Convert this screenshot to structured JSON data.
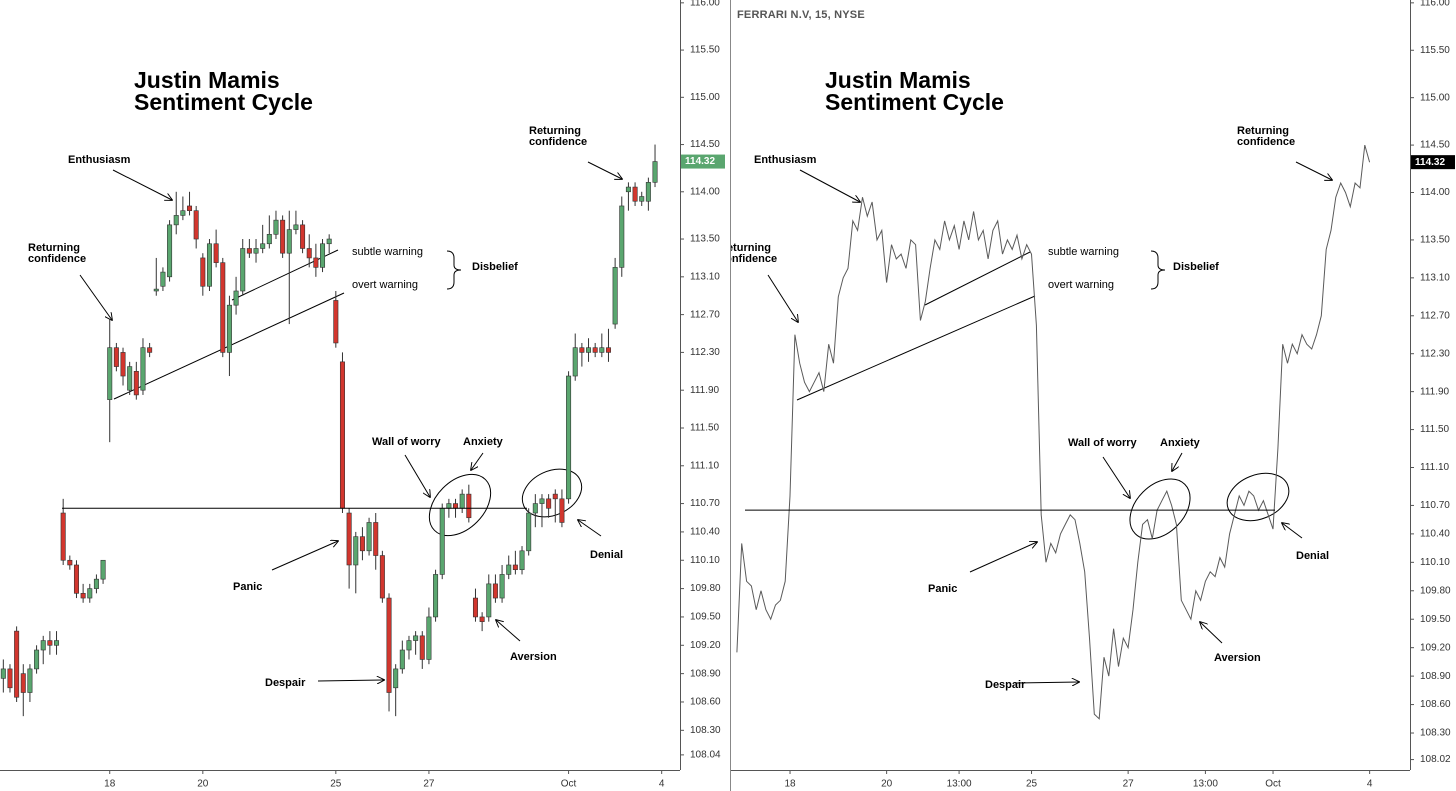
{
  "chart_data": [
    {
      "type": "candlestick",
      "title": "Justin Mamis Sentiment Cycle",
      "categories": [
        null,
        null,
        null,
        null,
        null,
        null,
        null,
        null,
        null,
        null,
        null,
        null,
        null,
        null,
        null,
        null,
        "18",
        null,
        null,
        null,
        null,
        null,
        null,
        null,
        null,
        null,
        null,
        null,
        null,
        null,
        "20",
        null,
        null,
        null,
        null,
        null,
        null,
        null,
        null,
        null,
        null,
        null,
        null,
        null,
        null,
        null,
        null,
        null,
        null,
        null,
        "25",
        null,
        null,
        null,
        null,
        null,
        null,
        null,
        null,
        null,
        null,
        null,
        null,
        null,
        "27",
        null,
        null,
        null,
        null,
        null,
        null,
        null,
        null,
        null,
        null,
        null,
        null,
        null,
        null,
        null,
        null,
        null,
        null,
        null,
        null,
        "Oct",
        null,
        null,
        null,
        null,
        null,
        null,
        null,
        null,
        null,
        null,
        null,
        null,
        null,
        "4"
      ],
      "open": [
        108.85,
        108.95,
        109.35,
        108.9,
        108.7,
        108.95,
        109.15,
        109.25,
        109.2,
        110.6,
        110.1,
        110.05,
        109.75,
        109.7,
        109.8,
        109.9,
        111.8,
        112.35,
        112.3,
        111.9,
        112.1,
        111.9,
        112.35,
        112.95,
        113.0,
        113.1,
        113.65,
        113.75,
        113.85,
        113.8,
        113.3,
        113.0,
        113.45,
        113.25,
        112.3,
        112.8,
        112.95,
        113.4,
        113.35,
        113.4,
        113.45,
        113.55,
        113.7,
        113.35,
        113.6,
        113.65,
        113.4,
        113.3,
        113.2,
        113.45,
        112.85,
        112.2,
        110.6,
        110.05,
        110.35,
        110.2,
        110.5,
        110.15,
        109.7,
        108.75,
        108.95,
        109.15,
        109.25,
        109.3,
        109.05,
        109.5,
        109.95,
        110.65,
        110.7,
        110.65,
        110.8,
        109.7,
        109.5,
        109.5,
        109.85,
        109.7,
        109.95,
        110.05,
        110.0,
        110.2,
        110.6,
        110.7,
        110.75,
        110.8,
        110.75,
        110.75,
        112.05,
        112.35,
        112.3,
        112.35,
        112.3,
        112.35,
        112.6,
        113.2,
        114.0,
        114.05,
        113.9,
        113.9,
        114.1,
        null
      ],
      "high": [
        109.05,
        109.0,
        109.4,
        109.0,
        109.0,
        109.2,
        109.3,
        109.35,
        109.35,
        110.75,
        110.15,
        110.1,
        109.85,
        109.85,
        109.95,
        110.1,
        112.65,
        112.4,
        112.35,
        112.2,
        112.2,
        112.45,
        112.4,
        113.3,
        113.2,
        113.7,
        114.0,
        113.95,
        114.0,
        113.85,
        113.35,
        113.5,
        113.6,
        113.3,
        112.9,
        113.1,
        113.5,
        113.5,
        113.5,
        113.65,
        113.75,
        113.8,
        113.75,
        113.8,
        113.8,
        113.7,
        113.55,
        113.45,
        113.5,
        113.55,
        112.95,
        112.3,
        110.65,
        110.4,
        110.45,
        110.55,
        110.6,
        110.2,
        109.75,
        109.0,
        109.25,
        109.3,
        109.35,
        109.35,
        109.6,
        110.0,
        110.7,
        110.75,
        110.75,
        110.85,
        110.9,
        109.8,
        109.55,
        109.95,
        109.95,
        110.05,
        110.15,
        110.2,
        110.25,
        110.65,
        110.8,
        110.8,
        110.8,
        110.85,
        110.85,
        112.1,
        112.5,
        112.4,
        112.45,
        112.4,
        112.5,
        112.55,
        113.3,
        113.95,
        114.1,
        114.1,
        114.0,
        114.15,
        114.5,
        null
      ],
      "low": [
        108.7,
        108.7,
        108.6,
        108.45,
        108.6,
        108.9,
        109.0,
        109.1,
        109.1,
        110.05,
        110.0,
        109.7,
        109.65,
        109.65,
        109.75,
        109.85,
        111.35,
        112.1,
        111.95,
        111.85,
        111.8,
        111.85,
        112.25,
        112.9,
        112.95,
        113.05,
        113.55,
        113.7,
        113.75,
        113.4,
        112.9,
        112.95,
        113.2,
        112.25,
        112.05,
        112.7,
        112.9,
        113.3,
        113.25,
        113.35,
        113.4,
        113.5,
        113.3,
        112.6,
        113.55,
        113.35,
        113.2,
        113.1,
        113.15,
        113.35,
        112.35,
        110.6,
        109.8,
        109.75,
        110.1,
        110.15,
        110.0,
        109.65,
        108.5,
        108.45,
        108.9,
        109.05,
        109.1,
        108.95,
        109.0,
        109.45,
        109.9,
        110.55,
        110.55,
        110.6,
        110.5,
        109.45,
        109.35,
        109.45,
        109.65,
        109.65,
        109.9,
        109.95,
        109.95,
        110.15,
        110.45,
        110.45,
        110.55,
        110.5,
        110.45,
        110.7,
        112.0,
        112.15,
        112.2,
        112.25,
        112.25,
        112.2,
        112.55,
        113.1,
        113.8,
        113.85,
        113.85,
        113.8,
        114.05,
        null
      ],
      "close": [
        108.95,
        108.75,
        108.65,
        108.7,
        108.95,
        109.15,
        109.25,
        109.2,
        109.25,
        110.1,
        110.05,
        109.75,
        109.7,
        109.8,
        109.9,
        110.1,
        112.35,
        112.15,
        112.05,
        112.15,
        111.85,
        112.35,
        112.3,
        112.97,
        113.15,
        113.65,
        113.75,
        113.8,
        113.8,
        113.5,
        113.0,
        113.45,
        113.25,
        112.3,
        112.8,
        112.95,
        113.4,
        113.35,
        113.4,
        113.45,
        113.55,
        113.7,
        113.35,
        113.6,
        113.65,
        113.4,
        113.3,
        113.2,
        113.45,
        113.5,
        112.4,
        110.65,
        110.05,
        110.35,
        110.2,
        110.5,
        110.15,
        109.7,
        108.7,
        108.95,
        109.15,
        109.25,
        109.3,
        109.05,
        109.5,
        109.95,
        110.65,
        110.7,
        110.65,
        110.8,
        110.55,
        109.5,
        109.45,
        109.85,
        109.7,
        109.95,
        110.05,
        110.0,
        110.2,
        110.6,
        110.7,
        110.75,
        110.65,
        110.75,
        110.5,
        112.05,
        112.35,
        112.3,
        112.35,
        112.3,
        112.35,
        112.3,
        113.2,
        113.85,
        114.05,
        113.9,
        113.95,
        114.1,
        114.32,
        null
      ],
      "up_color": "#5aa66f",
      "down_color": "#d2362e",
      "ylim": [
        107.88,
        116.03
      ],
      "yticks": [
        {
          "value": 116,
          "label": "116.00"
        },
        {
          "value": 115.5,
          "label": "115.50"
        },
        {
          "value": 115,
          "label": "115.00"
        },
        {
          "value": 114.5,
          "label": "114.50"
        },
        {
          "value": 114,
          "label": "114.00"
        },
        {
          "value": 113.5,
          "label": "113.50"
        },
        {
          "value": 113.1,
          "label": "113.10"
        },
        {
          "value": 112.7,
          "label": "112.70"
        },
        {
          "value": 112.3,
          "label": "112.30"
        },
        {
          "value": 111.9,
          "label": "111.90"
        },
        {
          "value": 111.5,
          "label": "111.50"
        },
        {
          "value": 111.1,
          "label": "111.10"
        },
        {
          "value": 110.7,
          "label": "110.70"
        },
        {
          "value": 110.4,
          "label": "110.40"
        },
        {
          "value": 110.1,
          "label": "110.10"
        },
        {
          "value": 109.8,
          "label": "109.80"
        },
        {
          "value": 109.5,
          "label": "109.50"
        },
        {
          "value": 109.2,
          "label": "109.20"
        },
        {
          "value": 108.9,
          "label": "108.90"
        },
        {
          "value": 108.6,
          "label": "108.60"
        },
        {
          "value": 108.3,
          "label": "108.30"
        },
        108.04
      ],
      "support_level": 110.65,
      "last_price": 114.32,
      "last_price_color": "#5aa66f",
      "annotations": [
        "Enthusiasm",
        "Returning confidence",
        "Returning confidence",
        "subtle warning",
        "overt warning",
        "Disbelief",
        "Wall of worry",
        "Anxiety",
        "Panic",
        "Despair",
        "Aversion",
        "Denial"
      ]
    },
    {
      "type": "line",
      "title": "Justin Mamis Sentiment Cycle",
      "subtitle": "FERRARI N.V, 15, NYSE",
      "categories": [
        null,
        null,
        null,
        null,
        null,
        null,
        null,
        null,
        null,
        null,
        null,
        "18",
        null,
        null,
        null,
        null,
        null,
        null,
        null,
        null,
        null,
        null,
        null,
        null,
        null,
        null,
        null,
        null,
        null,
        null,
        null,
        "20",
        null,
        null,
        null,
        null,
        null,
        null,
        null,
        null,
        null,
        null,
        null,
        null,
        null,
        null,
        "13:00",
        null,
        null,
        null,
        null,
        null,
        null,
        null,
        null,
        null,
        null,
        null,
        null,
        null,
        null,
        "25",
        null,
        null,
        null,
        null,
        null,
        null,
        null,
        null,
        null,
        null,
        null,
        null,
        null,
        null,
        null,
        null,
        null,
        null,
        null,
        "27",
        null,
        null,
        null,
        null,
        null,
        null,
        null,
        null,
        null,
        null,
        null,
        null,
        null,
        null,
        null,
        "13:00",
        null,
        null,
        null,
        null,
        null,
        null,
        null,
        null,
        null,
        null,
        null,
        null,
        null,
        "Oct",
        null,
        null,
        null,
        null,
        null,
        null,
        null,
        null,
        null,
        null,
        null,
        null,
        null,
        null,
        null,
        null,
        null,
        null,
        null,
        "4"
      ],
      "values": [
        109.15,
        110.3,
        109.9,
        109.85,
        109.6,
        109.8,
        109.6,
        109.5,
        109.65,
        109.7,
        109.9,
        110.8,
        112.5,
        112.2,
        112.0,
        111.9,
        112.0,
        112.1,
        111.9,
        112.4,
        112.2,
        112.9,
        113.1,
        113.2,
        113.7,
        113.6,
        113.95,
        113.75,
        113.9,
        113.5,
        113.6,
        113.05,
        113.45,
        113.3,
        113.35,
        113.2,
        113.5,
        113.45,
        112.65,
        112.85,
        113.2,
        113.5,
        113.4,
        113.7,
        113.5,
        113.65,
        113.4,
        113.7,
        113.5,
        113.8,
        113.5,
        113.6,
        113.3,
        113.6,
        113.7,
        113.35,
        113.5,
        113.4,
        113.55,
        113.3,
        113.45,
        113.35,
        112.6,
        110.6,
        110.1,
        110.3,
        110.2,
        110.4,
        110.5,
        110.6,
        110.55,
        110.3,
        110.0,
        109.3,
        108.5,
        108.45,
        109.1,
        108.9,
        109.4,
        109.0,
        109.3,
        109.2,
        109.6,
        110.1,
        110.5,
        110.55,
        110.35,
        110.65,
        110.75,
        110.85,
        110.7,
        110.5,
        109.7,
        109.6,
        109.5,
        109.8,
        109.7,
        109.9,
        110.0,
        109.95,
        110.15,
        110.05,
        110.4,
        110.6,
        110.8,
        110.7,
        110.85,
        110.8,
        110.65,
        110.75,
        110.6,
        110.45,
        111.3,
        112.4,
        112.2,
        112.4,
        112.3,
        112.5,
        112.4,
        112.35,
        112.5,
        112.7,
        113.4,
        113.6,
        113.95,
        114.1,
        114.0,
        113.85,
        114.1,
        114.05,
        114.5,
        114.32
      ],
      "color": "#5a5a5a",
      "ylim": [
        107.91,
        116.03
      ],
      "yticks": [
        {
          "value": 116,
          "label": "116.00"
        },
        {
          "value": 115.5,
          "label": "115.50"
        },
        {
          "value": 115,
          "label": "115.00"
        },
        {
          "value": 114.5,
          "label": "114.50"
        },
        {
          "value": 114,
          "label": "114.00"
        },
        {
          "value": 113.5,
          "label": "113.50"
        },
        {
          "value": 113.1,
          "label": "113.10"
        },
        {
          "value": 112.7,
          "label": "112.70"
        },
        {
          "value": 112.3,
          "label": "112.30"
        },
        {
          "value": 111.9,
          "label": "111.90"
        },
        {
          "value": 111.5,
          "label": "111.50"
        },
        {
          "value": 111.1,
          "label": "111.10"
        },
        {
          "value": 110.7,
          "label": "110.70"
        },
        {
          "value": 110.4,
          "label": "110.40"
        },
        {
          "value": 110.1,
          "label": "110.10"
        },
        {
          "value": 109.8,
          "label": "109.80"
        },
        {
          "value": 109.5,
          "label": "109.50"
        },
        {
          "value": 109.2,
          "label": "109.20"
        },
        {
          "value": 108.9,
          "label": "108.90"
        },
        {
          "value": 108.6,
          "label": "108.60"
        },
        {
          "value": 108.3,
          "label": "108.30"
        },
        108.02
      ],
      "support_level": 110.65,
      "last_price": 114.32,
      "last_price_color": "#000000",
      "annotations": [
        "Enthusiasm",
        "Returning confidence",
        "Returning confidence",
        "subtle warning",
        "overt warning",
        "Disbelief",
        "Wall of worry",
        "Anxiety",
        "Panic",
        "Despair",
        "Aversion",
        "Denial"
      ]
    }
  ]
}
